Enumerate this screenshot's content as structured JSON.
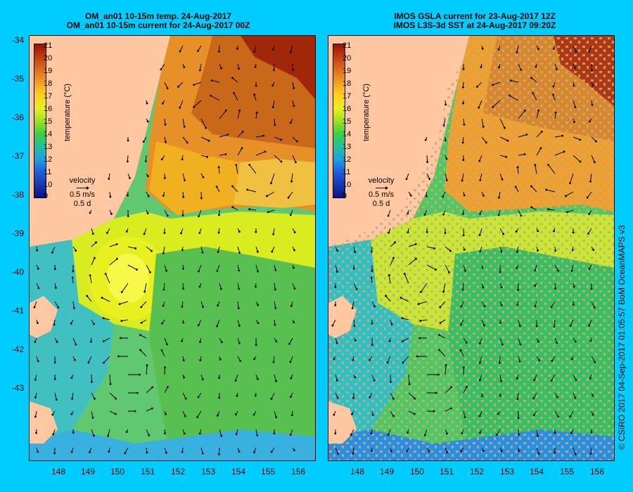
{
  "left_panel": {
    "title_line1": "OM_an01 10-15m temp. 24-Aug-2017",
    "title_line2": "OM_an01 10-15m current for 24-Aug-2017 00Z",
    "y_ticks": [
      "-34",
      "-35",
      "-36",
      "-37",
      "-38",
      "-39",
      "-40",
      "-41",
      "-42",
      "-43"
    ],
    "x_ticks": [
      "148",
      "149",
      "150",
      "151",
      "152",
      "153",
      "154",
      "155",
      "156"
    ]
  },
  "right_panel": {
    "title_line1": "IMOS GSLA current for 23-Aug-2017 12Z",
    "title_line2": "IMOS L3S-3d SST at 24-Aug-2017 09:20Z",
    "x_ticks": [
      "148",
      "149",
      "150",
      "151",
      "152",
      "153",
      "154",
      "155",
      "156"
    ]
  },
  "colorbar": {
    "labels": [
      "21",
      "20",
      "19",
      "18",
      "17",
      "16",
      "15",
      "14",
      "13",
      "12",
      "11",
      "10",
      "9"
    ],
    "title": "temperature (°C)",
    "colors": [
      "#a01000",
      "#d04000",
      "#e07020",
      "#f0a020",
      "#ffd020",
      "#e8f020",
      "#a0e020",
      "#40d040",
      "#20c0a0",
      "#20a0e0",
      "#2060e0",
      "#2020c0",
      "#101080"
    ]
  },
  "velocity_legend": {
    "label": "velocity",
    "speed": "0.5 m/s",
    "duration": "0.5 d"
  },
  "colors": {
    "background": "#00ccff",
    "land": "#ffc8a0",
    "no_data": "#c8a88c"
  },
  "credit": "© CSIRO 2017   04-Sep-2017 01:05:57 BoM OceanMAPS v3"
}
